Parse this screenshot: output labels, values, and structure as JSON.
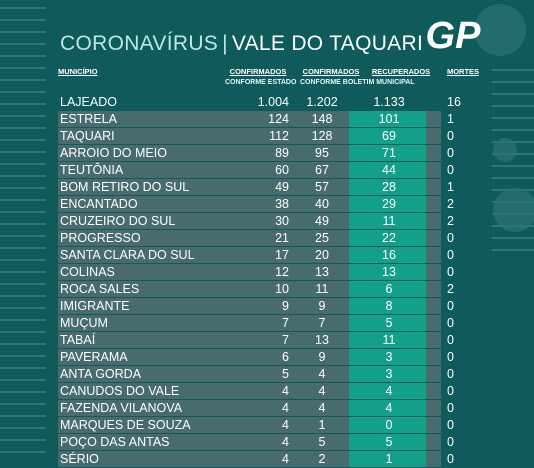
{
  "header": {
    "title_left": "CORONAVÍRUS",
    "title_sep": "|",
    "title_right": "VALE DO TAQUARI",
    "logo_text": "GP"
  },
  "columns": {
    "municipio": "MUNICÍPIO",
    "confirmados_estado": "CONFIRMADOS",
    "confirmados_estado_sub": "CONFORME ESTADO",
    "confirmados_boletim": "CONFIRMADOS",
    "confirmados_boletim_sub": "CONFORME BOLETIM MUNICIPAL",
    "recuperados": "RECUPERADOS",
    "mortes": "MORTES"
  },
  "rows": [
    {
      "name": "LAJEADO",
      "c1": "1.004",
      "c2": "1.202",
      "rec": "1.133",
      "mortes": "16"
    },
    {
      "name": "ESTRELA",
      "c1": "124",
      "c2": "148",
      "rec": "101",
      "mortes": "1"
    },
    {
      "name": "TAQUARI",
      "c1": "112",
      "c2": "128",
      "rec": "69",
      "mortes": "0"
    },
    {
      "name": "ARROIO DO MEIO",
      "c1": "89",
      "c2": "95",
      "rec": "71",
      "mortes": "0"
    },
    {
      "name": "TEUTÔNIA",
      "c1": "60",
      "c2": "67",
      "rec": "44",
      "mortes": "0"
    },
    {
      "name": "BOM RETIRO DO SUL",
      "c1": "49",
      "c2": "57",
      "rec": "28",
      "mortes": "1"
    },
    {
      "name": "ENCANTADO",
      "c1": "38",
      "c2": "40",
      "rec": "29",
      "mortes": "2"
    },
    {
      "name": "CRUZEIRO DO SUL",
      "c1": "30",
      "c2": "49",
      "rec": "11",
      "mortes": "2"
    },
    {
      "name": "PROGRESSO",
      "c1": "21",
      "c2": "25",
      "rec": "22",
      "mortes": "0"
    },
    {
      "name": "SANTA CLARA DO SUL",
      "c1": "17",
      "c2": "20",
      "rec": "16",
      "mortes": "0"
    },
    {
      "name": "COLINAS",
      "c1": "12",
      "c2": "13",
      "rec": "13",
      "mortes": "0"
    },
    {
      "name": "ROCA SALES",
      "c1": "10",
      "c2": "11",
      "rec": "6",
      "mortes": "2"
    },
    {
      "name": "IMIGRANTE",
      "c1": "9",
      "c2": "9",
      "rec": "8",
      "mortes": "0"
    },
    {
      "name": "MUÇUM",
      "c1": "7",
      "c2": "7",
      "rec": "5",
      "mortes": "0"
    },
    {
      "name": "TABAÍ",
      "c1": "7",
      "c2": "13",
      "rec": "11",
      "mortes": "0"
    },
    {
      "name": "PAVERAMA",
      "c1": "6",
      "c2": "9",
      "rec": "3",
      "mortes": "0"
    },
    {
      "name": "ANTA GORDA",
      "c1": "5",
      "c2": "4",
      "rec": "3",
      "mortes": "0"
    },
    {
      "name": "CANUDOS DO VALE",
      "c1": "4",
      "c2": "4",
      "rec": "4",
      "mortes": "0"
    },
    {
      "name": "FAZENDA VILANOVA",
      "c1": "4",
      "c2": "4",
      "rec": "4",
      "mortes": "0"
    },
    {
      "name": "MARQUES DE SOUZA",
      "c1": "4",
      "c2": "1",
      "rec": "0",
      "mortes": "0"
    },
    {
      "name": "POÇO DAS ANTAS",
      "c1": "4",
      "c2": "5",
      "rec": "5",
      "mortes": "0"
    },
    {
      "name": "SÉRIO",
      "c1": "4",
      "c2": "2",
      "rec": "1",
      "mortes": "0"
    }
  ]
}
